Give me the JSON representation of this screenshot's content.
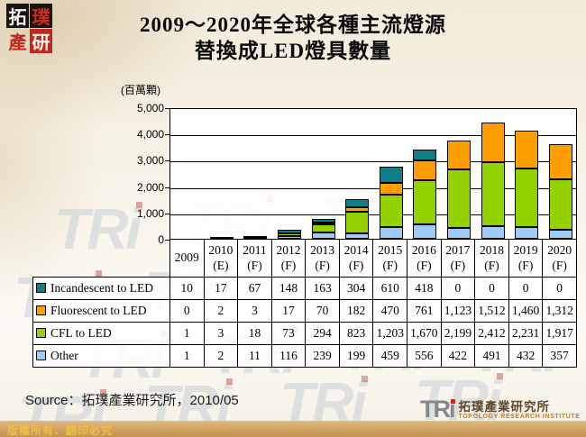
{
  "slide": {
    "title_line1": "2009～2020年全球各種主流燈源",
    "title_line2": "替換成LED燈具數量",
    "source": "Source：拓璞產業研究所，2010/05",
    "copyright": "版權所有．翻印必究"
  },
  "logo_topleft": {
    "chars": [
      "拓",
      "璞",
      "產",
      "研"
    ]
  },
  "tri_logo": {
    "text": "TRı",
    "cn": "拓璞產業研究所",
    "en": "TOPOLOGY RESEARCH INSTITUTE"
  },
  "watermark": {
    "text": "TRi"
  },
  "chart_data": {
    "type": "bar",
    "stacked": true,
    "title": "2009～2020年全球各種主流燈源替換成LED燈具數量",
    "unit_label": "(百萬顆)",
    "categories": [
      {
        "year": "2009",
        "tag": ""
      },
      {
        "year": "2010",
        "tag": "(E)"
      },
      {
        "year": "2011",
        "tag": "(F)"
      },
      {
        "year": "2012",
        "tag": "(F)"
      },
      {
        "year": "2013",
        "tag": "(F)"
      },
      {
        "year": "2014",
        "tag": "(F)"
      },
      {
        "year": "2015",
        "tag": "(F)"
      },
      {
        "year": "2016",
        "tag": "(F)"
      },
      {
        "year": "2017",
        "tag": "(F)"
      },
      {
        "year": "2018",
        "tag": "(F)"
      },
      {
        "year": "2019",
        "tag": "(F)"
      },
      {
        "year": "2020",
        "tag": "(F)"
      }
    ],
    "series": [
      {
        "name": "Incandescent to LED",
        "color": "#0e7f86",
        "values": [
          10,
          17,
          67,
          148,
          163,
          304,
          610,
          418,
          0,
          0,
          0,
          0
        ]
      },
      {
        "name": "Fluorescent to LED",
        "color": "#ff9e00",
        "values": [
          0,
          2,
          3,
          17,
          70,
          182,
          470,
          761,
          1123,
          1512,
          1460,
          1312
        ]
      },
      {
        "name": "CFL to LED",
        "color": "#93d200",
        "values": [
          1,
          3,
          18,
          73,
          294,
          823,
          1203,
          1670,
          2199,
          2412,
          2231,
          1917
        ]
      },
      {
        "name": "Other",
        "color": "#9ccbf5",
        "values": [
          1,
          2,
          11,
          116,
          239,
          199,
          459,
          556,
          422,
          491,
          432,
          357
        ]
      }
    ],
    "stack_order_bottom_to_top": [
      "Other",
      "CFL to LED",
      "Fluorescent to LED",
      "Incandescent to LED"
    ],
    "ylim": [
      0,
      5000
    ],
    "ytick_step": 1000,
    "grid": true,
    "legend_position": "table-left"
  }
}
